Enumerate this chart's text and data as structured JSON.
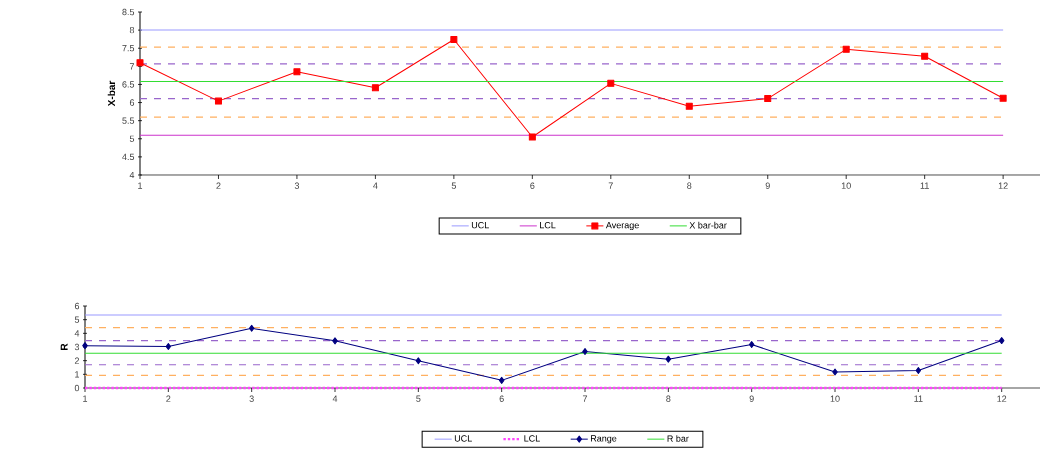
{
  "chart_data": [
    {
      "type": "line",
      "ylabel": "X-bar",
      "categories": [
        "1",
        "2",
        "3",
        "4",
        "5",
        "6",
        "7",
        "8",
        "9",
        "10",
        "11",
        "12"
      ],
      "ylim": [
        4,
        8.5
      ],
      "yticks": [
        4,
        4.5,
        5,
        5.5,
        6,
        6.5,
        7,
        7.5,
        8,
        8.5
      ],
      "legend": "bottom",
      "series": [
        {
          "name": "UCL",
          "color": "#9999ff",
          "values": [
            8.0,
            8.0,
            8.0,
            8.0,
            8.0,
            8.0,
            8.0,
            8.0,
            8.0,
            8.0,
            8.0,
            8.0
          ]
        },
        {
          "name": "LCL",
          "color": "#cc33cc",
          "values": [
            5.1,
            5.1,
            5.1,
            5.1,
            5.1,
            5.1,
            5.1,
            5.1,
            5.1,
            5.1,
            5.1,
            5.1
          ]
        },
        {
          "name": "Average",
          "color": "#ff0000",
          "marker": "square",
          "values": [
            7.1,
            6.04,
            6.85,
            6.41,
            7.74,
            5.05,
            6.53,
            5.9,
            6.11,
            7.47,
            7.28,
            6.12
          ]
        },
        {
          "name": "X bar-bar",
          "color": "#33dd33",
          "values": [
            6.58,
            6.58,
            6.58,
            6.58,
            6.58,
            6.58,
            6.58,
            6.58,
            6.58,
            6.58,
            6.58,
            6.58
          ]
        }
      ],
      "ref_lines": [
        {
          "axis": "y",
          "value": 7.53,
          "color": "#ffb060",
          "line_style": "dashed"
        },
        {
          "axis": "y",
          "value": 7.07,
          "color": "#9966cc",
          "line_style": "dashed"
        },
        {
          "axis": "y",
          "value": 6.11,
          "color": "#9966cc",
          "line_style": "dashed"
        },
        {
          "axis": "y",
          "value": 5.6,
          "color": "#ffb060",
          "line_style": "dashed"
        }
      ]
    },
    {
      "type": "line",
      "ylabel": "R",
      "categories": [
        "1",
        "2",
        "3",
        "4",
        "5",
        "6",
        "7",
        "8",
        "9",
        "10",
        "11",
        "12"
      ],
      "ylim": [
        0,
        6
      ],
      "yticks": [
        0,
        1,
        2,
        3,
        4,
        5,
        6
      ],
      "legend": "bottom",
      "series": [
        {
          "name": "UCL",
          "color": "#9999ff",
          "values": [
            5.34,
            5.34,
            5.34,
            5.34,
            5.34,
            5.34,
            5.34,
            5.34,
            5.34,
            5.34,
            5.34,
            5.34
          ]
        },
        {
          "name": "LCL",
          "color": "#ff44ff",
          "line_style": "dotted",
          "values": [
            0,
            0,
            0,
            0,
            0,
            0,
            0,
            0,
            0,
            0,
            0,
            0
          ]
        },
        {
          "name": "Range",
          "color": "#000080",
          "marker": "diamond",
          "values": [
            3.1,
            3.04,
            4.37,
            3.45,
            1.99,
            0.56,
            2.67,
            2.11,
            3.18,
            1.17,
            1.28,
            3.47
          ]
        },
        {
          "name": "R bar",
          "color": "#33dd33",
          "values": [
            2.55,
            2.55,
            2.55,
            2.55,
            2.55,
            2.55,
            2.55,
            2.55,
            2.55,
            2.55,
            2.55,
            2.55
          ]
        }
      ],
      "ref_lines": [
        {
          "axis": "y",
          "value": 4.42,
          "color": "#ffb060",
          "line_style": "dashed"
        },
        {
          "axis": "y",
          "value": 3.47,
          "color": "#9966cc",
          "line_style": "dashed"
        },
        {
          "axis": "y",
          "value": 1.7,
          "color": "#9966cc",
          "line_style": "dashed"
        },
        {
          "axis": "y",
          "value": 0.92,
          "color": "#ffb060",
          "line_style": "dashed"
        }
      ]
    }
  ]
}
